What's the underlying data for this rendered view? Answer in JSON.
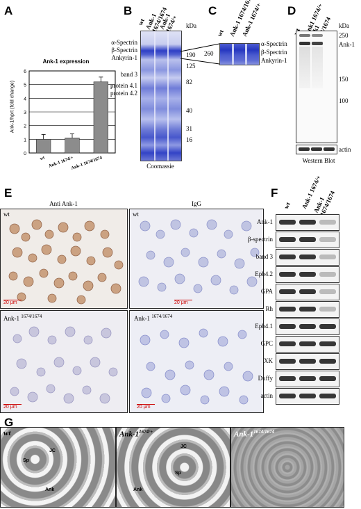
{
  "panels": {
    "A": "A",
    "B": "B",
    "C": "C",
    "D": "D",
    "E": "E",
    "F": "F",
    "G": "G"
  },
  "panelA": {
    "title": "Ank-1 expression",
    "ylabel": "Ank-1/hprt (fold change)",
    "chart_data": {
      "type": "bar",
      "title": "Ank-1 expression",
      "ylabel": "Ank-1/hprt (fold change)",
      "categories": [
        "wt",
        "Ank-1 1674/+",
        "Ank-1 1674/1674"
      ],
      "values": [
        1.0,
        1.1,
        5.2
      ],
      "errors": [
        0.35,
        0.3,
        0.35
      ],
      "ylim": [
        0,
        6
      ],
      "yticks": [
        "0",
        "1",
        "2",
        "3",
        "4",
        "5",
        "6"
      ],
      "bar_color": "#8c8c8c",
      "grid": "horizontal"
    }
  },
  "panelB": {
    "lanes": [
      "wt",
      "Ank-1 1674/1674",
      "Ank-1 1674/+"
    ],
    "kda_label": "kDa",
    "markers": [
      "190",
      "125",
      "82",
      "40",
      "31",
      "16"
    ],
    "bands": [
      "α-Spectrin",
      "β-Spectrin",
      "Ankyrin-1",
      "band 3",
      "protein 4.1",
      "protein 4.2"
    ],
    "caption": "Coomassie"
  },
  "panelC": {
    "lanes": [
      "wt",
      "Ank-1 1674/1674",
      "Ank-1 1674/+"
    ],
    "marker": "260",
    "bands": [
      "α-Spectrin",
      "β-Spectrin",
      "Ankyrin-1"
    ]
  },
  "panelD": {
    "lanes": [
      "wt",
      "Ank1 1674/+",
      "Ank1 1674/1674"
    ],
    "kda_label": "kDa",
    "markers": [
      "250",
      "Ank-1",
      "150",
      "100"
    ],
    "loading": "actin",
    "caption": "Western Blot"
  },
  "panelE": {
    "col_titles": [
      "Anti Ank-1",
      "IgG"
    ],
    "tiles": [
      {
        "label": "wt",
        "scale": "20 μm"
      },
      {
        "label": "wt",
        "scale": "20 μm"
      },
      {
        "label": "Ank-1",
        "sup": "1674/1674",
        "scale": "20 μm"
      },
      {
        "label": "Ank-1",
        "sup": "1674/1674",
        "scale": "20 μm"
      }
    ]
  },
  "panelF": {
    "lanes": [
      "wt",
      "Ank-1 1674/+",
      "Ank-1 1674/1674"
    ],
    "rows": [
      "Ank-1",
      "β-spectrin",
      "band 3",
      "Epb4.2",
      "GPA",
      "Rh",
      "Epb4.1",
      "GPC",
      "XK",
      "Duffy",
      "actin"
    ]
  },
  "panelG": {
    "tiles": [
      {
        "label": "wt",
        "markers": [
          "JC",
          "Sp",
          "Ank"
        ]
      },
      {
        "label": "Ank-1",
        "sup": "1674/+",
        "markers": [
          "JC",
          "Sp",
          "Ank"
        ]
      },
      {
        "label": "Ank-1",
        "sup": "1674/1674",
        "markers": []
      }
    ]
  }
}
